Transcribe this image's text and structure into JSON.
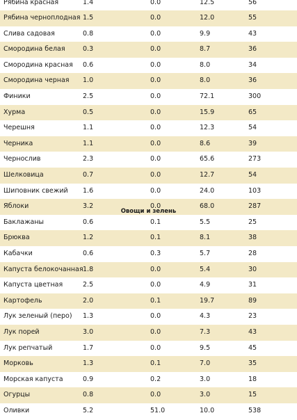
{
  "section_title": "Овощи и зелень",
  "rows": [
    {
      "name": "Рябина красная",
      "protein": "1.4",
      "fat": "0.0",
      "carbs": "12.5",
      "kcal": "56"
    },
    {
      "name": "Рябина черноплодная",
      "protein": "1.5",
      "fat": "0.0",
      "carbs": "12.0",
      "kcal": "55"
    },
    {
      "name": "Слива садовая",
      "protein": "0.8",
      "fat": "0.0",
      "carbs": "9.9",
      "kcal": "43"
    },
    {
      "name": "Смородина белая",
      "protein": "0.3",
      "fat": "0.0",
      "carbs": "8.7",
      "kcal": "36"
    },
    {
      "name": "Смородина красная",
      "protein": "0.6",
      "fat": "0.0",
      "carbs": "8.0",
      "kcal": "34"
    },
    {
      "name": "Смородина черная",
      "protein": "1.0",
      "fat": "0.0",
      "carbs": "8.0",
      "kcal": "36"
    },
    {
      "name": "Финики",
      "protein": "2.5",
      "fat": "0.0",
      "carbs": "72.1",
      "kcal": "300"
    },
    {
      "name": "Хурма",
      "protein": "0.5",
      "fat": "0.0",
      "carbs": "15.9",
      "kcal": "65"
    },
    {
      "name": "Черешня",
      "protein": "1.1",
      "fat": "0.0",
      "carbs": "12.3",
      "kcal": "54"
    },
    {
      "name": "Черника",
      "protein": "1.1",
      "fat": "0.0",
      "carbs": "8.6",
      "kcal": "39"
    },
    {
      "name": "Чернослив",
      "protein": "2.3",
      "fat": "0.0",
      "carbs": "65.6",
      "kcal": "273"
    },
    {
      "name": "Шелковица",
      "protein": "0.7",
      "fat": "0.0",
      "carbs": "12.7",
      "kcal": "54"
    },
    {
      "name": "Шиповник свежий",
      "protein": "1.6",
      "fat": "0.0",
      "carbs": "24.0",
      "kcal": "103"
    },
    {
      "name": "Яблоки",
      "protein": "3.2",
      "fat": "0.0",
      "carbs": "68.0",
      "kcal": "287"
    },
    {
      "name": "Баклажаны",
      "protein": "0.6",
      "fat": "0.1",
      "carbs": "5.5",
      "kcal": "25"
    },
    {
      "name": "Брюква",
      "protein": "1.2",
      "fat": "0.1",
      "carbs": "8.1",
      "kcal": "38"
    },
    {
      "name": "Кабачки",
      "protein": "0.6",
      "fat": "0.3",
      "carbs": "5.7",
      "kcal": "28"
    },
    {
      "name": "Капуста белокочанная",
      "protein": "1.8",
      "fat": "0.0",
      "carbs": "5.4",
      "kcal": "30"
    },
    {
      "name": "Капуста цветная",
      "protein": "2.5",
      "fat": "0.0",
      "carbs": "4.9",
      "kcal": "31"
    },
    {
      "name": "Картофель",
      "protein": "2.0",
      "fat": "0.1",
      "carbs": "19.7",
      "kcal": "89"
    },
    {
      "name": "Лук зеленый (перо)",
      "protein": "1.3",
      "fat": "0.0",
      "carbs": "4.3",
      "kcal": "23"
    },
    {
      "name": "Лук порей",
      "protein": "3.0",
      "fat": "0.0",
      "carbs": "7.3",
      "kcal": "43"
    },
    {
      "name": "Лук репчатый",
      "protein": "1.7",
      "fat": "0.0",
      "carbs": "9.5",
      "kcal": "45"
    },
    {
      "name": "Морковь",
      "protein": "1.3",
      "fat": "0.1",
      "carbs": "7.0",
      "kcal": "35"
    },
    {
      "name": "Морская капуста",
      "protein": "0.9",
      "fat": "0.2",
      "carbs": "3.0",
      "kcal": "18"
    },
    {
      "name": "Огурцы",
      "protein": "0.8",
      "fat": "0.0",
      "carbs": "3.0",
      "kcal": "15"
    },
    {
      "name": "Оливки",
      "protein": "5.2",
      "fat": "51.0",
      "carbs": "10.0",
      "kcal": "538"
    }
  ]
}
